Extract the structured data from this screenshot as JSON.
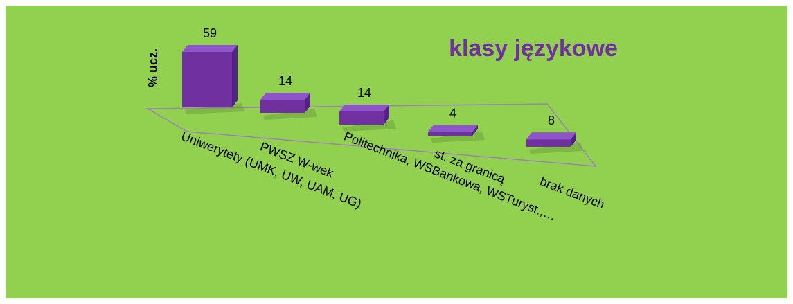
{
  "chart_data": {
    "type": "bar3d",
    "title": "klasy językowe",
    "y_label": "% ucz.",
    "categories": [
      "Uniwerytety (UMK, UW, UAM, UG)",
      "PWSZ W-wek",
      "Politechnika, WSBankowa, WSTuryst.,…",
      "st. za granicą",
      "brak danych"
    ],
    "values": [
      59,
      14,
      14,
      4,
      8
    ],
    "color": "#7030a0",
    "ylim": [
      0,
      60
    ]
  }
}
